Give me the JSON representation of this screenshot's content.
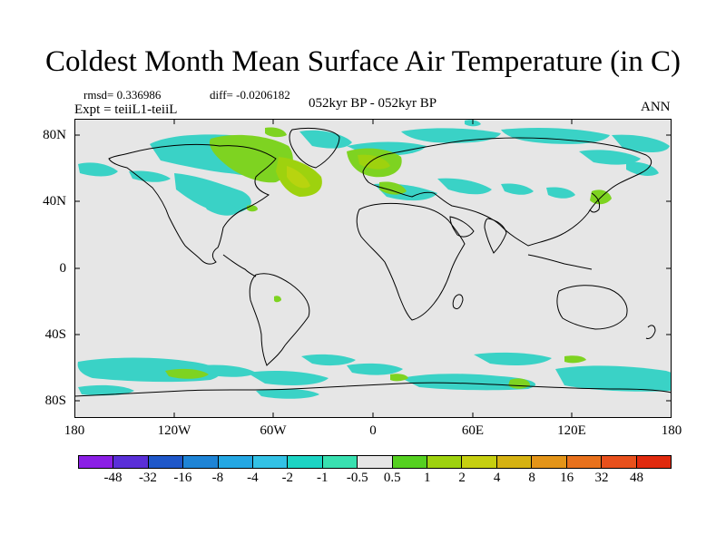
{
  "title": "Coldest Month Mean Surface Air Temperature (in C)",
  "stats": {
    "rmsd": "rmsd= 0.336986",
    "diff": "diff= -0.0206182"
  },
  "expt": "Expt = teiiL1-teiiL",
  "period": "052kyr BP - 052kyr BP",
  "season": "ANN",
  "lat_labels": [
    "80N",
    "40N",
    "0",
    "40S",
    "80S"
  ],
  "lon_labels": [
    "180",
    "120W",
    "60W",
    "0",
    "60E",
    "120E",
    "180"
  ],
  "colorbar": {
    "labels": [
      "-48",
      "-32",
      "-16",
      "-8",
      "-4",
      "-2",
      "-1",
      "-0.5",
      "0.5",
      "1",
      "2",
      "4",
      "8",
      "16",
      "32",
      "48"
    ],
    "colors": [
      "#8b1fe6",
      "#5a2fd8",
      "#1f57c9",
      "#1e84d6",
      "#24a7e3",
      "#33c2e6",
      "#1cd4c4",
      "#38e0b0",
      "#e6e6e6",
      "#55d020",
      "#9ed20e",
      "#c6cf10",
      "#d6b212",
      "#e39418",
      "#e8711c",
      "#e8501c",
      "#e02a0e"
    ]
  },
  "map": {
    "background": "#e6e6e6",
    "projection": "cylindrical equidistant",
    "lat_range": [
      -90,
      90
    ],
    "lon_range": [
      -180,
      180
    ]
  }
}
